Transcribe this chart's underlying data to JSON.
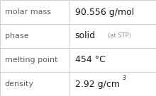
{
  "rows": [
    {
      "label": "molar mass",
      "value": "90.556 g/mol",
      "type": "plain"
    },
    {
      "label": "phase",
      "value": "solid",
      "value_suffix": "(at STP)",
      "type": "phase"
    },
    {
      "label": "melting point",
      "value": "454 °C",
      "type": "plain"
    },
    {
      "label": "density",
      "value": "2.92 g/cm",
      "superscript": "3",
      "type": "density"
    }
  ],
  "background_color": "#ffffff",
  "border_color": "#c8c8c8",
  "label_color": "#606060",
  "value_color": "#1a1a1a",
  "suffix_color": "#909090",
  "col_split": 0.44,
  "figsize": [
    2.2,
    1.36
  ],
  "dpi": 100,
  "label_fontsize": 8.0,
  "value_fontsize": 9.0,
  "suffix_fontsize": 6.0,
  "super_fontsize": 5.5
}
